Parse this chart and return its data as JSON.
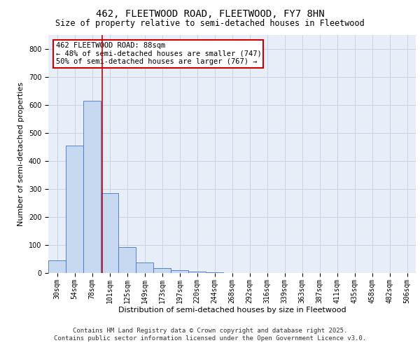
{
  "title_line1": "462, FLEETWOOD ROAD, FLEETWOOD, FY7 8HN",
  "title_line2": "Size of property relative to semi-detached houses in Fleetwood",
  "xlabel": "Distribution of semi-detached houses by size in Fleetwood",
  "ylabel": "Number of semi-detached properties",
  "bin_labels": [
    "30sqm",
    "54sqm",
    "78sqm",
    "101sqm",
    "125sqm",
    "149sqm",
    "173sqm",
    "197sqm",
    "220sqm",
    "244sqm",
    "268sqm",
    "292sqm",
    "316sqm",
    "339sqm",
    "363sqm",
    "387sqm",
    "411sqm",
    "435sqm",
    "458sqm",
    "482sqm",
    "506sqm"
  ],
  "bar_values": [
    45,
    455,
    615,
    285,
    93,
    38,
    18,
    10,
    5,
    3,
    1,
    0,
    0,
    0,
    0,
    0,
    0,
    0,
    0,
    0,
    0
  ],
  "bar_color": "#c6d9f0",
  "bar_edge_color": "#4472c4",
  "grid_color": "#c8d4e8",
  "background_color": "#e8eef8",
  "vline_x": 2.58,
  "vline_color": "#cc0000",
  "annotation_title": "462 FLEETWOOD ROAD: 88sqm",
  "annotation_line1": "← 48% of semi-detached houses are smaller (747)",
  "annotation_line2": "50% of semi-detached houses are larger (767) →",
  "annotation_box_color": "#cc0000",
  "ylim": [
    0,
    850
  ],
  "yticks": [
    0,
    100,
    200,
    300,
    400,
    500,
    600,
    700,
    800
  ],
  "footer_line1": "Contains HM Land Registry data © Crown copyright and database right 2025.",
  "footer_line2": "Contains public sector information licensed under the Open Government Licence v3.0.",
  "title_fontsize": 10,
  "subtitle_fontsize": 8.5,
  "axis_label_fontsize": 8,
  "tick_fontsize": 7,
  "annotation_fontsize": 7.5,
  "footer_fontsize": 6.5
}
